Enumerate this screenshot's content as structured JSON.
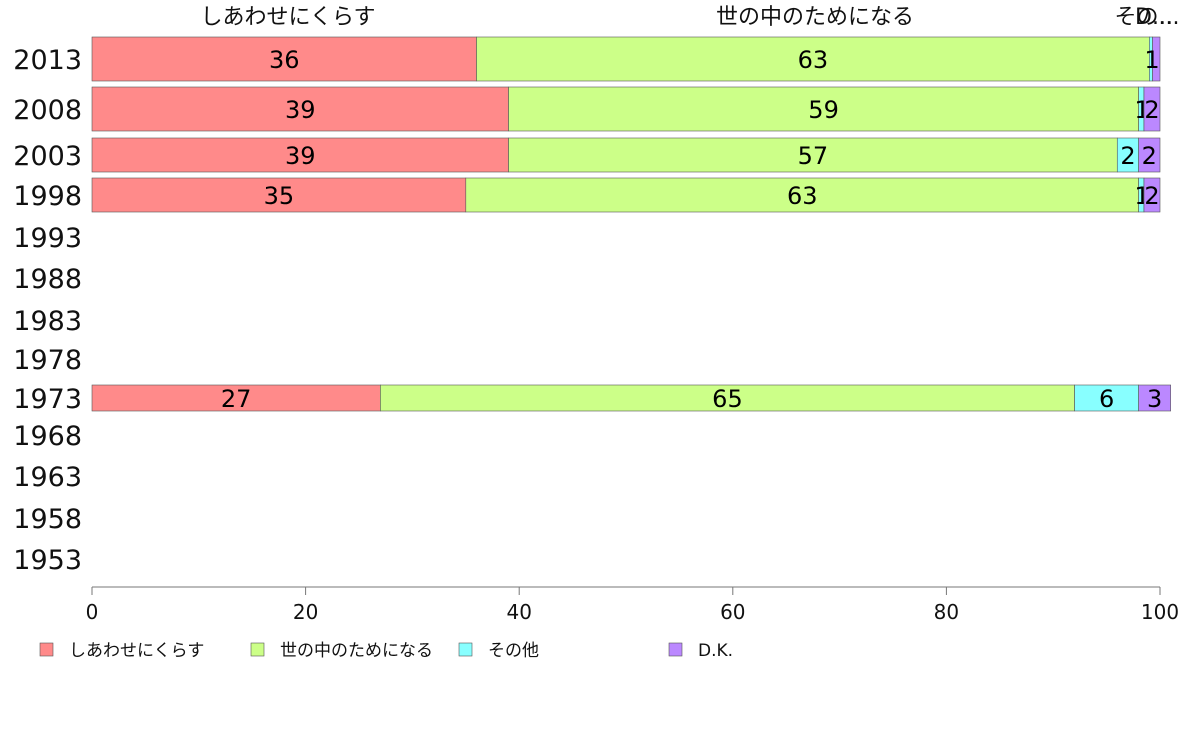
{
  "chart_data": {
    "type": "bar",
    "orientation": "horizontal",
    "stacked": true,
    "categories": [
      "2013",
      "2008",
      "2003",
      "1998",
      "1993",
      "1988",
      "1983",
      "1978",
      "1973",
      "1968",
      "1963",
      "1958",
      "1953"
    ],
    "series": [
      {
        "name": "しあわせにくらす",
        "values": [
          36,
          39,
          39,
          35,
          null,
          null,
          null,
          null,
          27,
          null,
          null,
          null,
          null
        ],
        "color": "#ff8a8a"
      },
      {
        "name": "世の中のためになる",
        "values": [
          63,
          59,
          57,
          63,
          null,
          null,
          null,
          null,
          65,
          null,
          null,
          null,
          null
        ],
        "color": "#ccff88"
      },
      {
        "name": "その他",
        "values": [
          0.3,
          0.5,
          2,
          0.5,
          null,
          null,
          null,
          null,
          6,
          null,
          null,
          null,
          null
        ],
        "color": "#88ffff"
      },
      {
        "name": "D.K.",
        "values": [
          0.7,
          1.5,
          2,
          1.5,
          null,
          null,
          null,
          null,
          3,
          null,
          null,
          null,
          null
        ],
        "color": "#bb88ff"
      }
    ],
    "labels": [
      [
        "36",
        "39",
        "39",
        "35",
        "",
        "",
        "",
        "",
        "27",
        "",
        "",
        "",
        ""
      ],
      [
        "63",
        "59",
        "57",
        "63",
        "",
        "",
        "",
        "",
        "65",
        "",
        "",
        "",
        ""
      ],
      [
        "",
        "1",
        "2",
        "1",
        "",
        "",
        "",
        "",
        "6",
        "",
        "",
        "",
        ""
      ],
      [
        "1",
        "2",
        "2",
        "2",
        "",
        "",
        "",
        "",
        "3",
        "",
        "",
        "",
        ""
      ]
    ],
    "top_labels": [
      "しあわせにくらす",
      "世の中のためになる",
      "その...",
      "D..."
    ],
    "xlim": [
      0,
      100
    ],
    "xticks": [
      0,
      20,
      40,
      60,
      80,
      100
    ],
    "legend_position": "bottom",
    "grid": false,
    "title": "",
    "xlabel": "",
    "ylabel": ""
  }
}
